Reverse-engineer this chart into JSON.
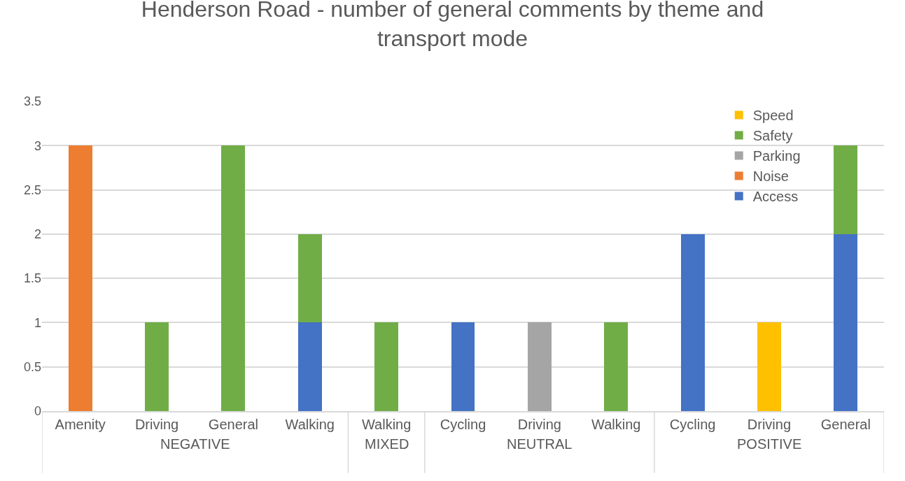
{
  "chart_data": {
    "type": "bar",
    "title": "Henderson Road - number of general comments by theme and transport mode",
    "categories": [
      "Amenity",
      "Driving",
      "General",
      "Walking",
      "Walking",
      "Cycling",
      "Driving",
      "Walking",
      "Cycling",
      "Driving",
      "General"
    ],
    "series": [
      {
        "name": "Access",
        "color": "#4472c4",
        "values": [
          null,
          null,
          null,
          1,
          null,
          1,
          null,
          null,
          2,
          null,
          2
        ]
      },
      {
        "name": "Noise",
        "color": "#ed7d31",
        "values": [
          3,
          null,
          null,
          null,
          null,
          null,
          null,
          null,
          null,
          null,
          null
        ]
      },
      {
        "name": "Parking",
        "color": "#a5a5a5",
        "values": [
          null,
          null,
          null,
          null,
          null,
          null,
          1,
          null,
          null,
          null,
          null
        ]
      },
      {
        "name": "Safety",
        "color": "#70ad47",
        "values": [
          null,
          1,
          3,
          1,
          1,
          null,
          null,
          1,
          null,
          null,
          1
        ]
      },
      {
        "name": "Speed",
        "color": "#ffc000",
        "values": [
          null,
          null,
          null,
          null,
          null,
          null,
          null,
          null,
          null,
          1,
          null
        ]
      }
    ],
    "stacked": true,
    "ylim": [
      0,
      3.5
    ],
    "yticks": [
      0,
      0.5,
      1,
      1.5,
      2,
      2.5,
      3,
      3.5
    ],
    "grid": "y",
    "legend": "top right",
    "annotations": [
      "NEGATIVE",
      "MIXED",
      "NEUTRAL",
      "POSITIVE"
    ]
  }
}
